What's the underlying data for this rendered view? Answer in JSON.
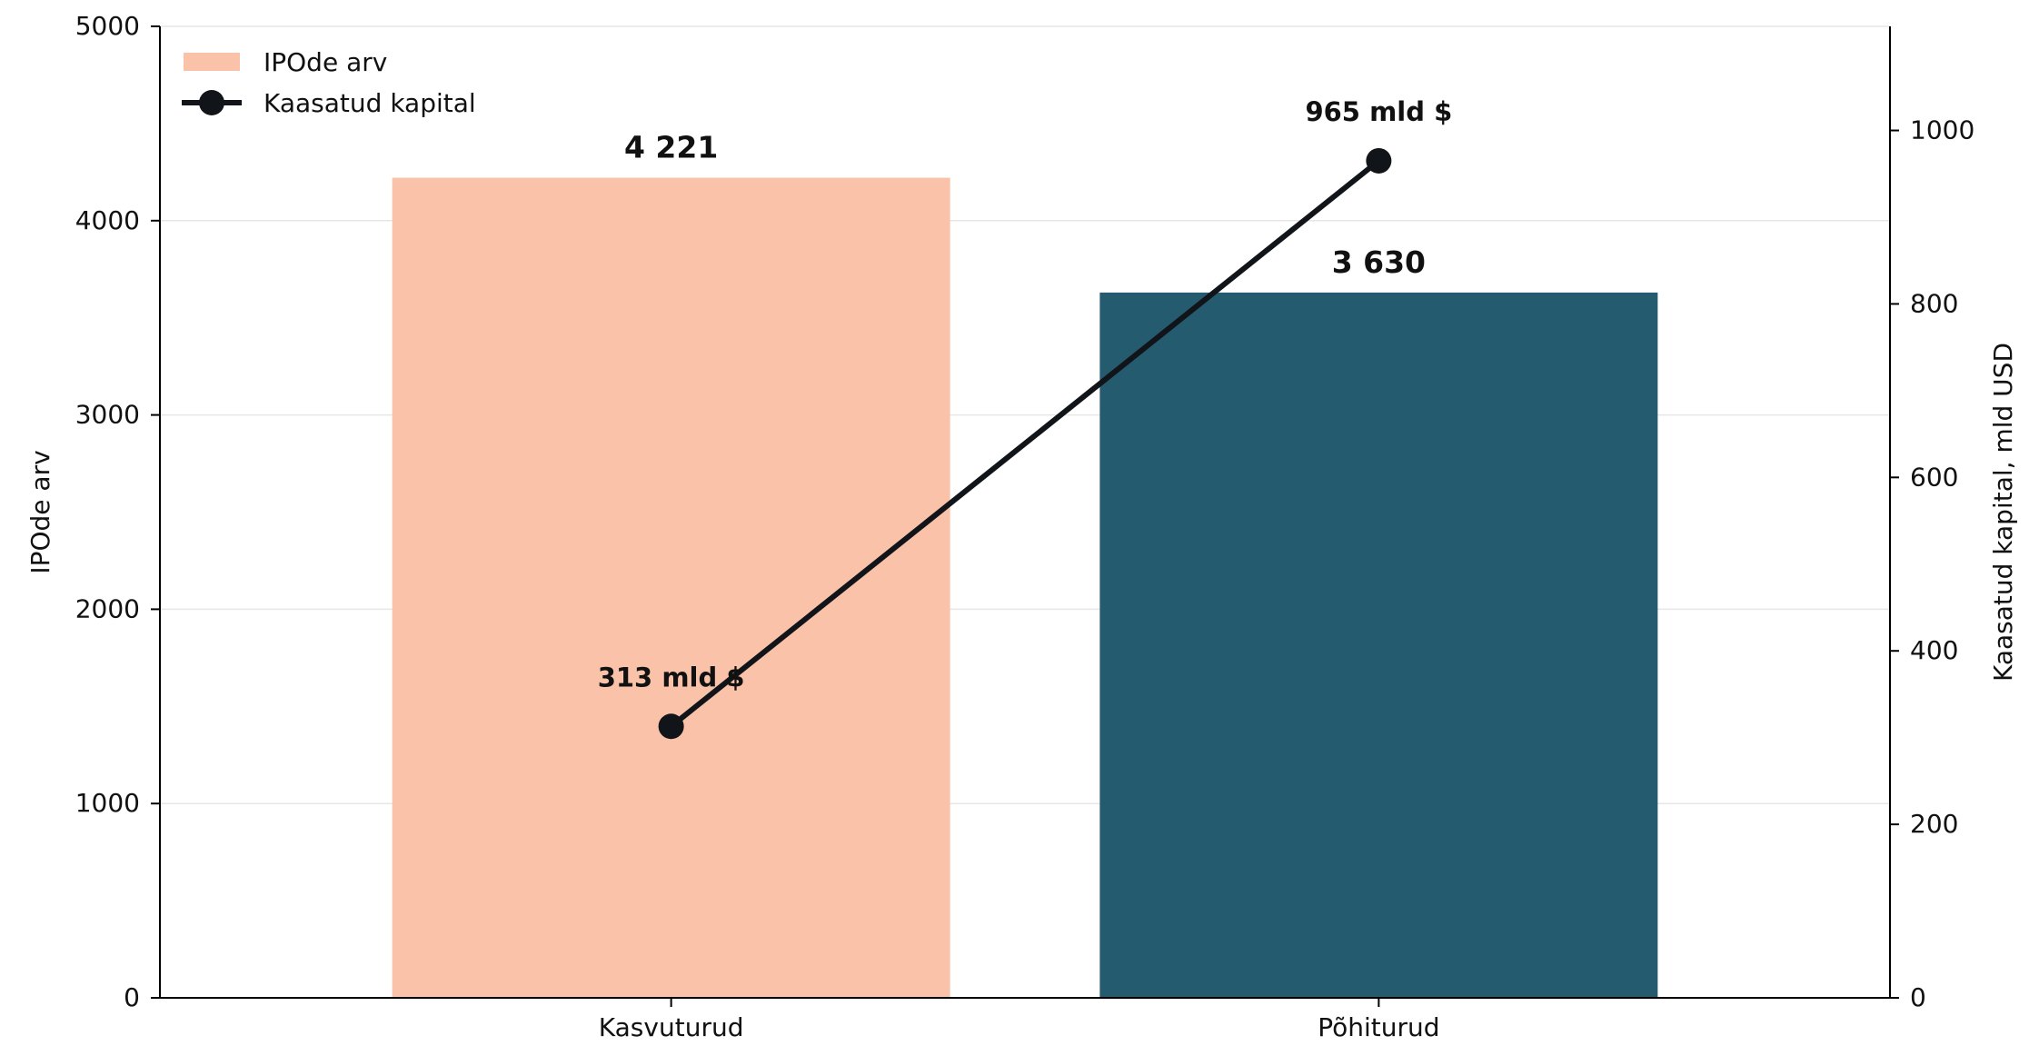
{
  "chart_data": {
    "type": "bar",
    "categories": [
      "Kasvuturud",
      "Põhiturud"
    ],
    "series": [
      {
        "name": "IPOde arv",
        "type": "bar",
        "axis": "left",
        "values": [
          4221,
          3630
        ],
        "value_labels": [
          "4 221",
          "3 630"
        ],
        "colors": [
          "#F9C2A9",
          "#255B6E"
        ]
      },
      {
        "name": "Kaasatud kapital",
        "type": "line",
        "axis": "right",
        "values": [
          313,
          965
        ],
        "value_labels": [
          "313 mld $",
          "965 mld $"
        ],
        "color": "#111418"
      }
    ],
    "ylabel": "IPOde arv",
    "y2label": "Kaasatud kapital, mld USD",
    "ylim": [
      0,
      5000
    ],
    "y2lim": [
      0,
      1120
    ],
    "yticks": [
      "0",
      "1000",
      "2000",
      "3000",
      "4000",
      "5000"
    ],
    "y2ticks": [
      "0",
      "200",
      "400",
      "600",
      "800",
      "1000"
    ],
    "grid": true,
    "legend_position": "top-left"
  }
}
